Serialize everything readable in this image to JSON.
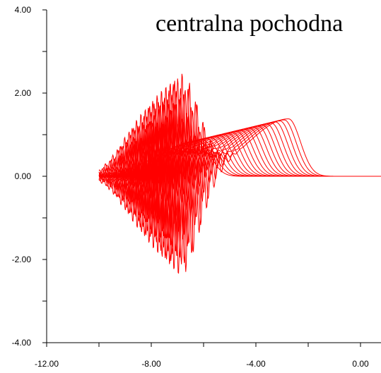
{
  "chart_data": {
    "type": "line",
    "title": "centralna pochodna",
    "xlabel": "",
    "ylabel": "",
    "xlim": [
      -12,
      1
    ],
    "ylim": [
      -4,
      4
    ],
    "x_ticks": [
      -12,
      -10,
      -8,
      -6,
      -4,
      -2,
      0
    ],
    "x_tick_labels": [
      "-12.00",
      "",
      "-8.00",
      "",
      "-4.00",
      "",
      "0.00"
    ],
    "y_ticks": [
      -4,
      -3,
      -2,
      -1,
      0,
      1,
      2,
      3,
      4
    ],
    "y_tick_labels": [
      "-4.00",
      "",
      "-2.00",
      "",
      "0.00",
      "",
      "2.00",
      "",
      "4.00"
    ],
    "grid": false,
    "line_color": "#ff0000",
    "curve_family": {
      "count": 22,
      "x_start": -10.0,
      "x_end": 1.0,
      "pulse_peak_x_first": -6.2,
      "pulse_peak_x_last": -2.75,
      "pulse_peak_y_first": 0.85,
      "pulse_peak_y_last": 1.38,
      "oscillation_amplitude_max": 2.5
    }
  }
}
